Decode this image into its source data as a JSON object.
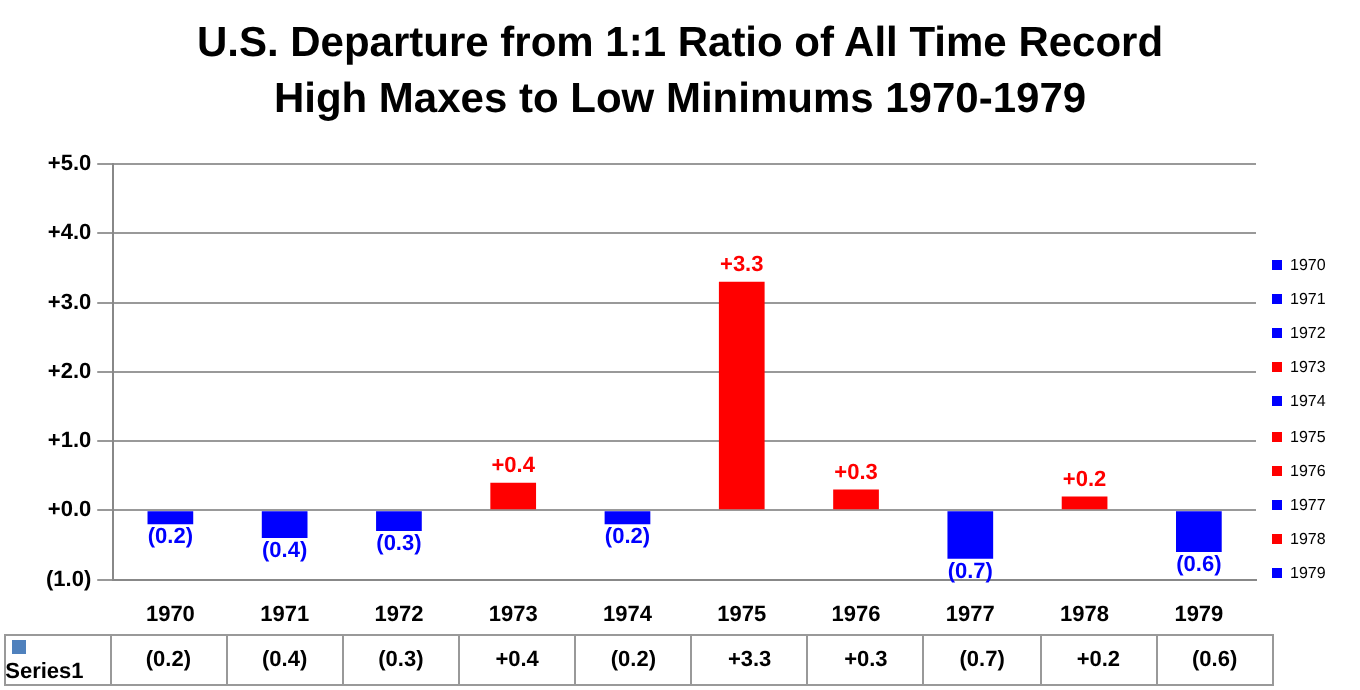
{
  "chart_data": {
    "type": "bar",
    "title": "U.S. Departure from 1:1 Ratio of All Time Record High Maxes to Low Minimums 1970-1979",
    "categories": [
      "1970",
      "1971",
      "1972",
      "1973",
      "1974",
      "1975",
      "1976",
      "1977",
      "1978",
      "1979"
    ],
    "series": [
      {
        "name": "Series1",
        "color": "#4f81bd",
        "values": [
          -0.2,
          -0.4,
          -0.3,
          0.4,
          -0.2,
          3.3,
          0.3,
          -0.7,
          0.2,
          -0.6
        ],
        "colors": [
          "#0000ff",
          "#0000ff",
          "#0000ff",
          "#ff0000",
          "#0000ff",
          "#ff0000",
          "#ff0000",
          "#0000ff",
          "#ff0000",
          "#0000ff"
        ],
        "value_labels": [
          "(0.2)",
          "(0.4)",
          "(0.3)",
          "+0.4",
          "(0.2)",
          "+3.3",
          "+0.3",
          "(0.7)",
          "+0.2",
          "(0.6)"
        ]
      }
    ],
    "ylim": [
      -1,
      5
    ],
    "yticks": [
      {
        "value": -1,
        "label": "(1.0)"
      },
      {
        "value": 0,
        "label": "+0.0"
      },
      {
        "value": 1,
        "label": "+1.0"
      },
      {
        "value": 2,
        "label": "+2.0"
      },
      {
        "value": 3,
        "label": "+3.0"
      },
      {
        "value": 4,
        "label": "+4.0"
      },
      {
        "value": 5,
        "label": "+5.0"
      }
    ],
    "grid": "y",
    "legend": "bottom left",
    "data_labels": true
  }
}
